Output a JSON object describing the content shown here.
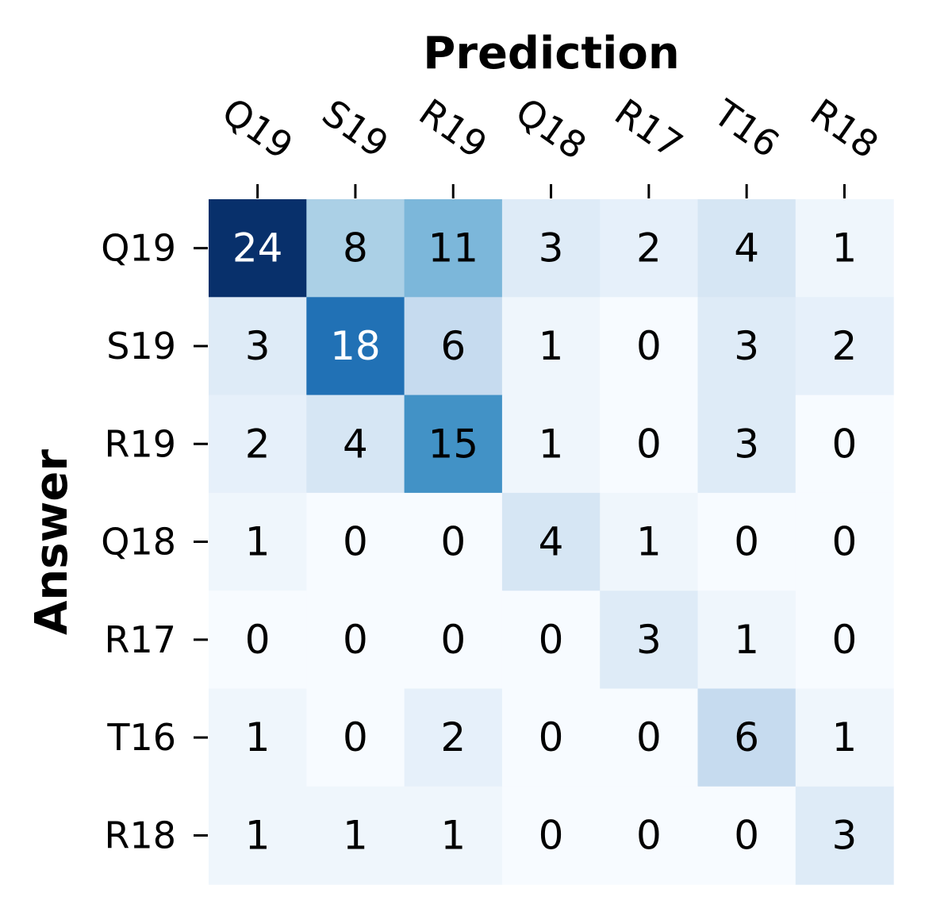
{
  "chart_data": {
    "type": "heatmap",
    "title": "",
    "xlabel": "Prediction",
    "ylabel": "Answer",
    "x_categories": [
      "Q19",
      "S19",
      "R19",
      "Q18",
      "R17",
      "T16",
      "R18"
    ],
    "y_categories": [
      "Q19",
      "S19",
      "R19",
      "Q18",
      "R17",
      "T16",
      "R18"
    ],
    "values": [
      [
        24,
        8,
        11,
        3,
        2,
        4,
        1
      ],
      [
        3,
        18,
        6,
        1,
        0,
        3,
        2
      ],
      [
        2,
        4,
        15,
        1,
        0,
        3,
        0
      ],
      [
        1,
        0,
        0,
        4,
        1,
        0,
        0
      ],
      [
        0,
        0,
        0,
        0,
        3,
        1,
        0
      ],
      [
        1,
        0,
        2,
        0,
        0,
        6,
        1
      ],
      [
        1,
        1,
        1,
        0,
        0,
        0,
        3
      ]
    ],
    "value_range": [
      0,
      24
    ],
    "colormap": "Blues",
    "colorbar": false,
    "x_axis_position": "top",
    "annotations": true
  }
}
